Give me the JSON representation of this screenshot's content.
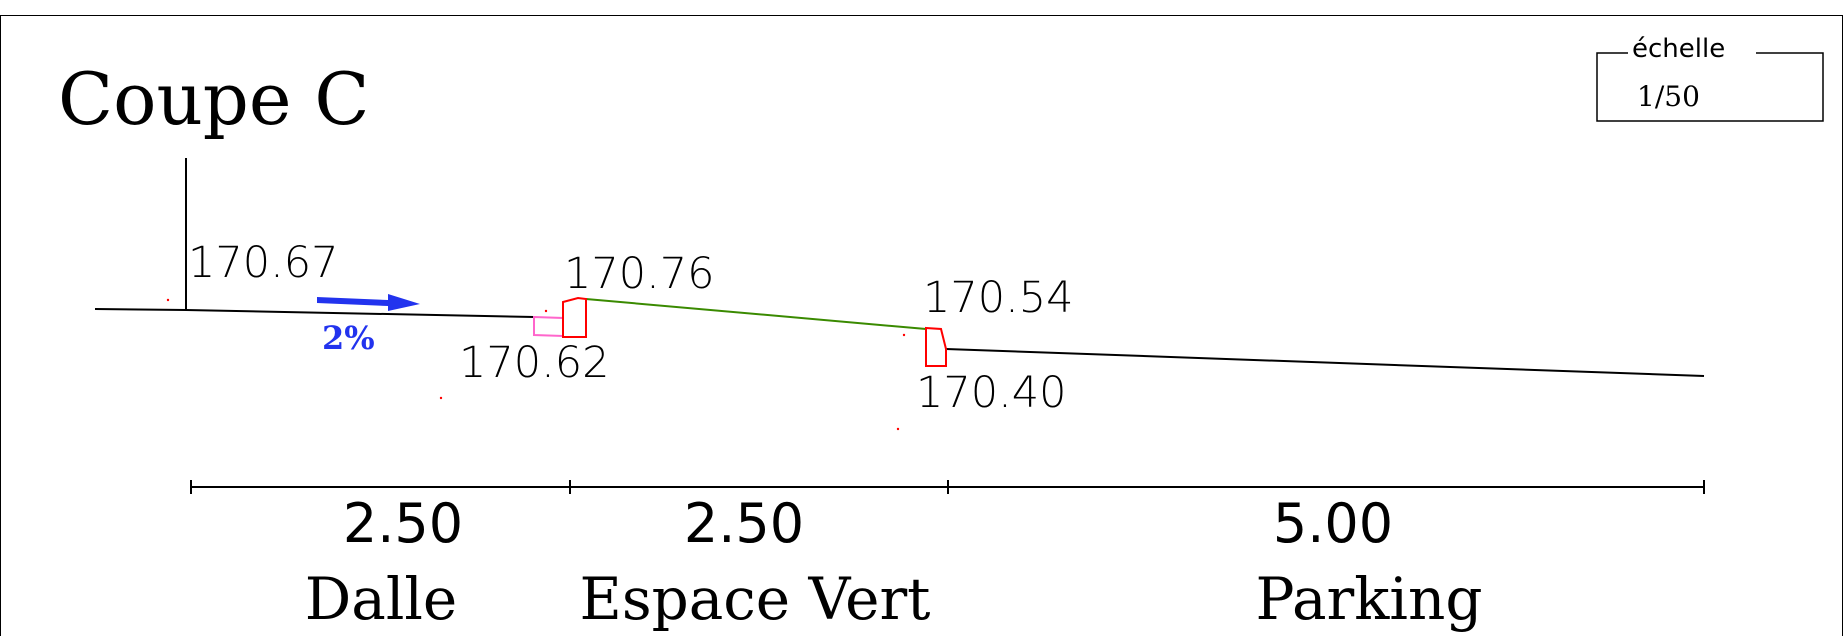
{
  "title": "Coupe C",
  "scale_box": {
    "label": "échelle",
    "value": "1/50"
  },
  "elevations": {
    "e1": "170.67",
    "e2": "170.76",
    "e3": "170.62",
    "e4": "170.54",
    "e5": "170.40"
  },
  "slope": {
    "label": "2%"
  },
  "dimensions": [
    {
      "value": "2.50",
      "zone": "Dalle"
    },
    {
      "value": "2.50",
      "zone": "Espace Vert"
    },
    {
      "value": "5.00",
      "zone": "Parking"
    }
  ],
  "colors": {
    "line": "#000000",
    "curb": "#ff0000",
    "pavement_edge": "#ff66cc",
    "green_space": "#3a8a00",
    "slope_arrow": "#2233ee"
  }
}
